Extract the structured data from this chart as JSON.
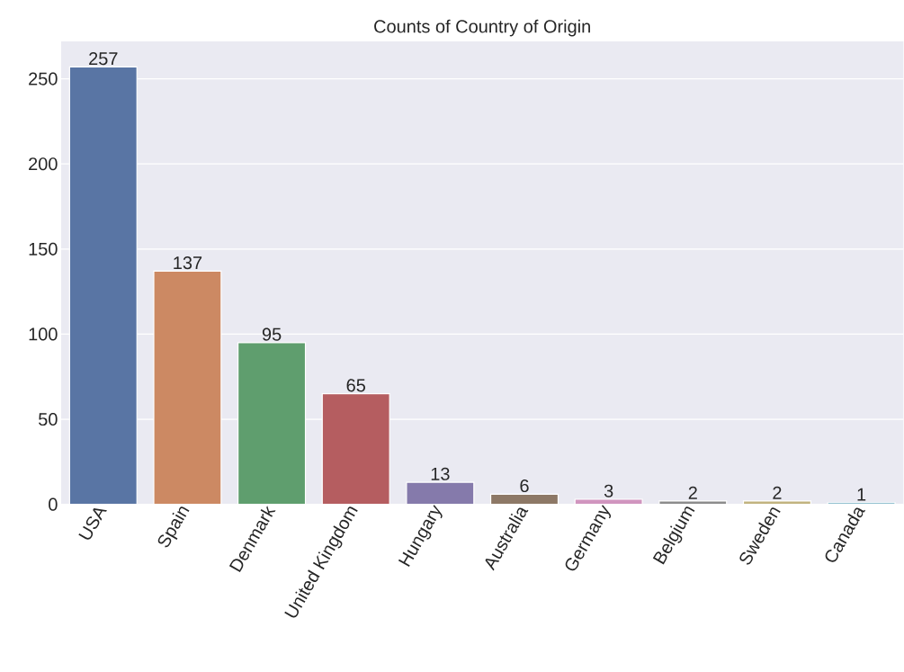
{
  "chart_data": {
    "type": "bar",
    "title": "Counts of Country of Origin",
    "categories": [
      "USA",
      "Spain",
      "Denmark",
      "United Kingdom",
      "Hungary",
      "Australia",
      "Germany",
      "Belgium",
      "Sweden",
      "Canada"
    ],
    "values": [
      257,
      137,
      95,
      65,
      13,
      6,
      3,
      2,
      2,
      1
    ],
    "colors": [
      "#5975a4",
      "#cc8963",
      "#5f9e6e",
      "#b55d60",
      "#857aab",
      "#8d7866",
      "#d095bf",
      "#8c8c8c",
      "#c1b37f",
      "#71aec0"
    ],
    "ylim": [
      0,
      272
    ],
    "yticks": [
      0,
      50,
      100,
      150,
      200,
      250
    ],
    "grid": "y",
    "data_labels": true
  }
}
